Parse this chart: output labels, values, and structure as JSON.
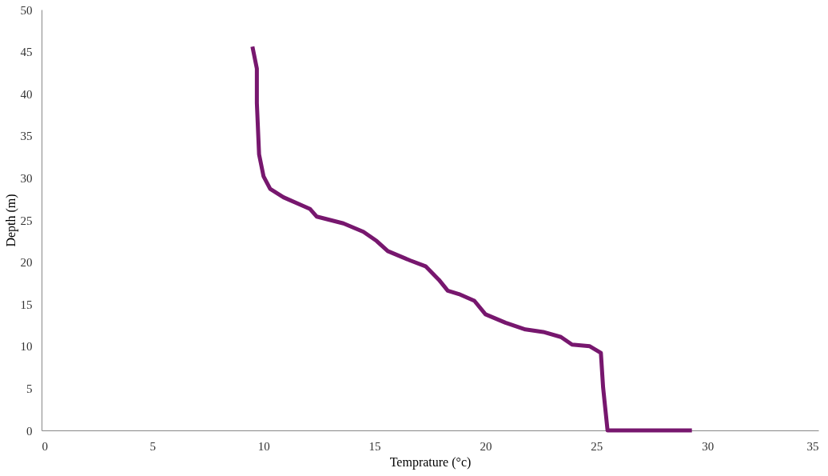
{
  "chart_data": {
    "type": "line",
    "xlabel": "Temprature (°c)",
    "ylabel": "Depth (m)",
    "xlim": [
      0,
      35
    ],
    "xticks": [
      0,
      5,
      10,
      15,
      20,
      25,
      30,
      35
    ],
    "ylim": [
      0,
      50
    ],
    "yticks": [
      0,
      5,
      10,
      15,
      20,
      25,
      30,
      35,
      40,
      45,
      50
    ],
    "grid": false,
    "marker": "none",
    "line_style": "solid",
    "series": [
      {
        "color": "#77176e",
        "x": [
          9.5,
          9.7,
          9.7,
          9.8,
          10.0,
          10.3,
          10.9,
          12.1,
          12.4,
          13.6,
          14.5,
          15.1,
          15.6,
          16.6,
          17.3,
          17.9,
          18.3,
          18.8,
          19.5,
          20.0,
          20.9,
          21.8,
          22.6,
          23.4,
          23.9,
          24.7,
          25.2,
          25.3,
          25.5,
          29.3
        ],
        "values": [
          45.6,
          43.0,
          38.9,
          32.8,
          30.2,
          28.7,
          27.7,
          26.3,
          25.4,
          24.6,
          23.6,
          22.5,
          21.3,
          20.2,
          19.5,
          17.9,
          16.6,
          16.2,
          15.4,
          13.8,
          12.8,
          12.0,
          11.7,
          11.1,
          10.2,
          10.0,
          9.2,
          5.1,
          0,
          0
        ]
      }
    ]
  }
}
